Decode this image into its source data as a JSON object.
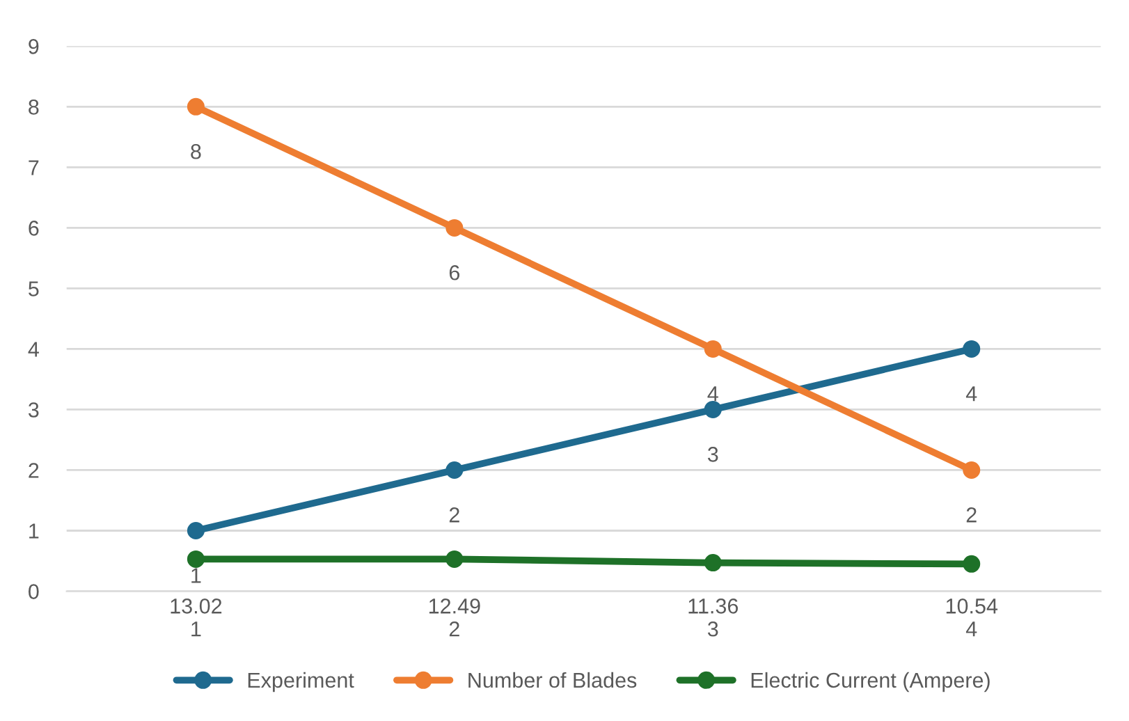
{
  "chart_data": {
    "type": "line",
    "categories": [
      "13.02\n1",
      "12.49\n2",
      "11.36\n3",
      "10.54\n4"
    ],
    "series": [
      {
        "name": "Experiment",
        "color": "#1f6a8f",
        "values": [
          1,
          2,
          3,
          4
        ],
        "value_labels": [
          "1",
          "2",
          "3",
          "4"
        ]
      },
      {
        "name": "Number of Blades",
        "color": "#ee7d31",
        "values": [
          8,
          6,
          4,
          2
        ],
        "value_labels": [
          "8",
          "6",
          "4",
          "2"
        ]
      },
      {
        "name": "Electric Current (Ampere)",
        "color": "#1e7128",
        "values": [
          0.53,
          0.53,
          0.47,
          0.45
        ]
      }
    ],
    "ylim": [
      0,
      9
    ],
    "yticks": [
      0,
      1,
      2,
      3,
      4,
      5,
      6,
      7,
      8,
      9
    ],
    "grid": "y",
    "legend": "bottom",
    "marker": "circle",
    "line_style": "solid"
  }
}
